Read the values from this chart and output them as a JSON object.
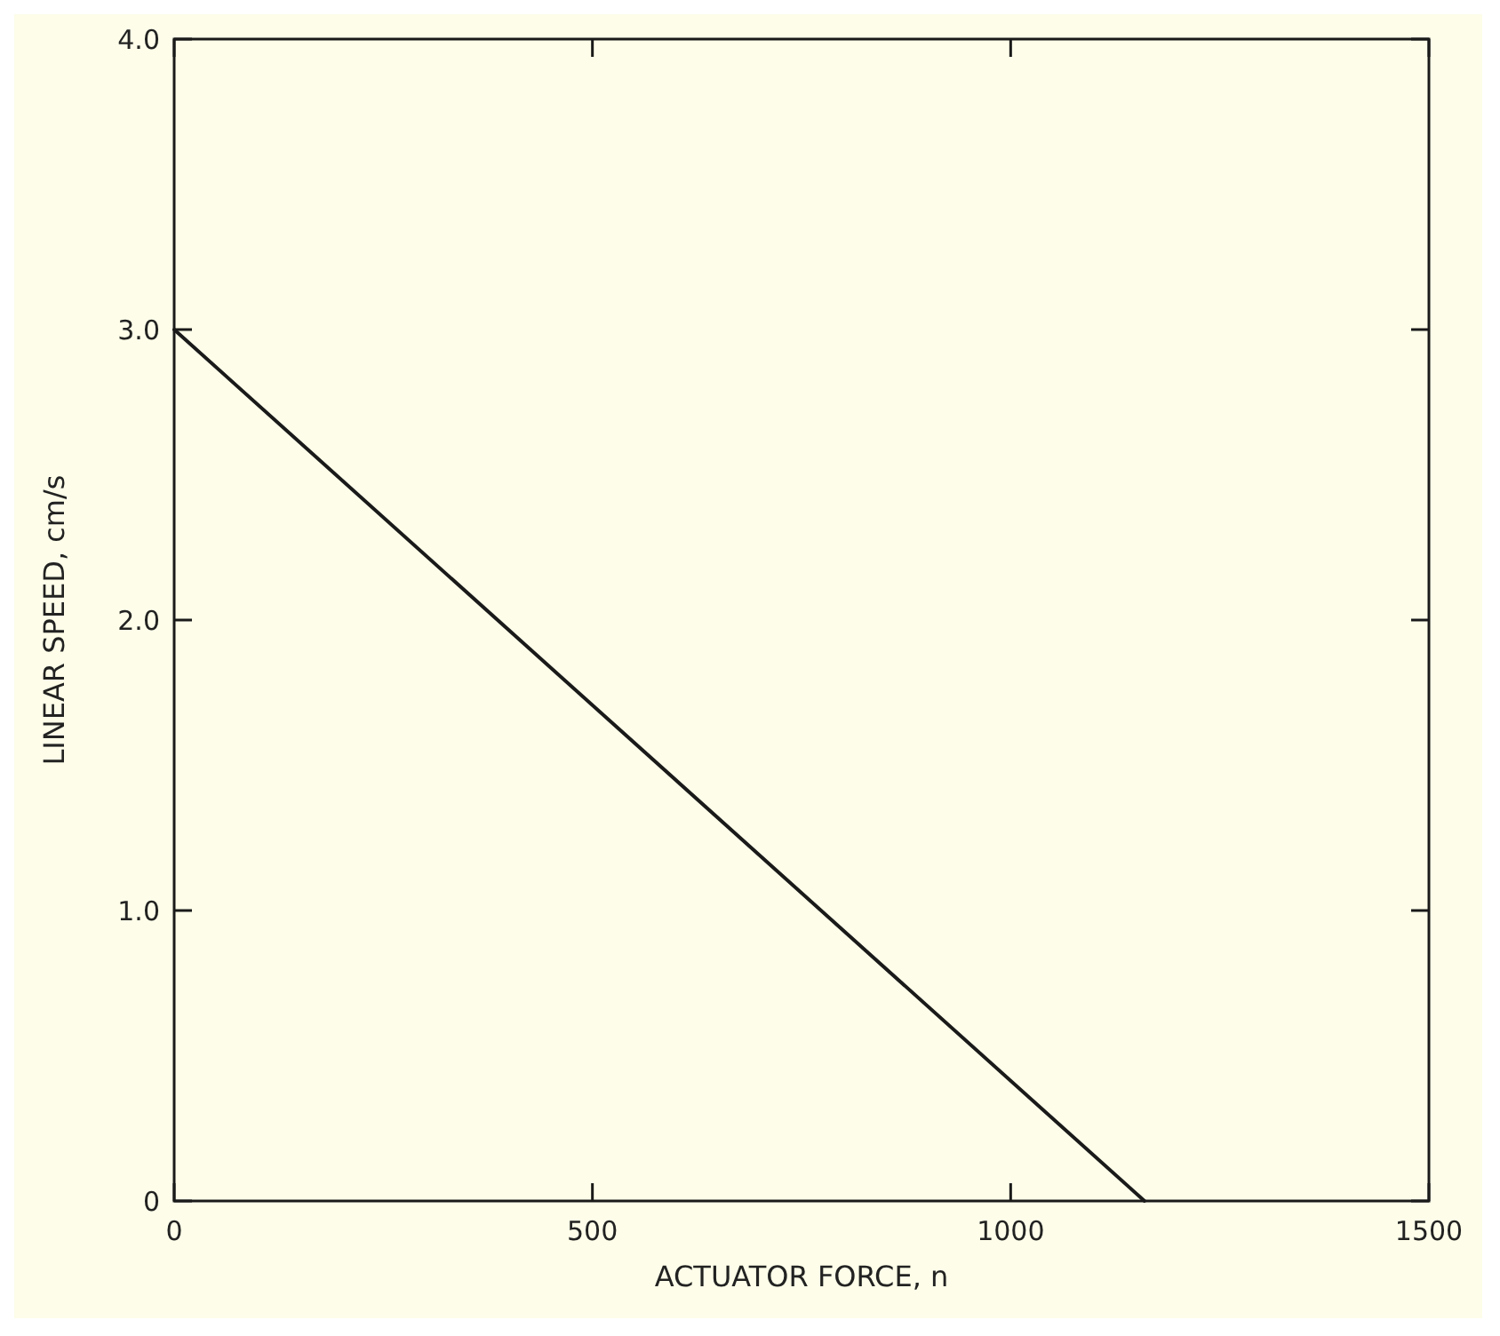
{
  "chart_data": {
    "type": "line",
    "xlabel": "ACTUATOR FORCE, n",
    "ylabel": "LINEAR SPEED, cm/s",
    "series": [
      {
        "color": "#1a1a1a",
        "x": [
          0,
          1160
        ],
        "values": [
          3.0,
          0
        ]
      }
    ],
    "xlim": [
      0,
      1500
    ],
    "ylim": [
      0,
      4
    ],
    "xticks": [
      0,
      500,
      1000,
      1500
    ],
    "yticks": [
      0,
      {
        "value": 1,
        "label": "1.0"
      },
      {
        "value": 2,
        "label": "2.0"
      },
      {
        "value": 3,
        "label": "3.0"
      },
      {
        "value": 4,
        "label": "4.0"
      }
    ],
    "grid": false,
    "marker": "none",
    "line_style": "solid"
  }
}
